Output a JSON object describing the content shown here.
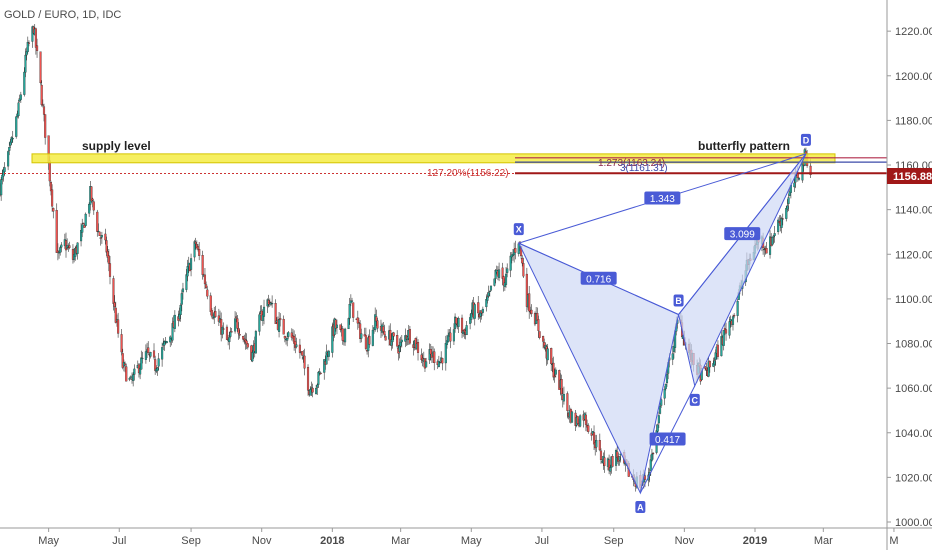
{
  "chart_data": {
    "type": "candlestick",
    "title": "GOLD / EURO, 1D, IDC",
    "ylim": [
      1000,
      1225
    ],
    "y_ticks": [
      1000,
      1020,
      1040,
      1060,
      1080,
      1100,
      1120,
      1140,
      1160,
      1180,
      1200,
      1220
    ],
    "y_tick_labels": [
      "1000.00",
      "1020.00",
      "1040.00",
      "1060.00",
      "1080.00",
      "1100.00",
      "1120.00",
      "1140.00",
      "1160.00",
      "1180.00",
      "1200.00",
      "1220.00"
    ],
    "x_labels": [
      "May",
      "Jul",
      "Sep",
      "Nov",
      "2018",
      "Mar",
      "May",
      "Jul",
      "Sep",
      "Nov",
      "2019",
      "Mar",
      "M"
    ],
    "x_start": "2017-03-20",
    "x_end": "2019-04-25",
    "x_label_dates": [
      "2017-05-01",
      "2017-07-01",
      "2017-09-01",
      "2017-11-01",
      "2018-01-01",
      "2018-03-01",
      "2018-05-01",
      "2018-07-01",
      "2018-09-01",
      "2018-11-01",
      "2019-01-01",
      "2019-03-01",
      "2019-05-01"
    ],
    "last_price": 1156.88,
    "last_price_label": "1156.88",
    "price_path": [
      [
        "2017-03-20",
        1150
      ],
      [
        "2017-03-28",
        1165
      ],
      [
        "2017-04-05",
        1185
      ],
      [
        "2017-04-12",
        1210
      ],
      [
        "2017-04-18",
        1222
      ],
      [
        "2017-04-24",
        1195
      ],
      [
        "2017-04-28",
        1175
      ],
      [
        "2017-05-03",
        1150
      ],
      [
        "2017-05-09",
        1118
      ],
      [
        "2017-05-15",
        1125
      ],
      [
        "2017-05-22",
        1118
      ],
      [
        "2017-05-30",
        1130
      ],
      [
        "2017-06-06",
        1147
      ],
      [
        "2017-06-13",
        1130
      ],
      [
        "2017-06-20",
        1122
      ],
      [
        "2017-06-27",
        1095
      ],
      [
        "2017-07-04",
        1070
      ],
      [
        "2017-07-11",
        1062
      ],
      [
        "2017-07-18",
        1070
      ],
      [
        "2017-07-25",
        1075
      ],
      [
        "2017-08-01",
        1070
      ],
      [
        "2017-08-08",
        1078
      ],
      [
        "2017-08-15",
        1085
      ],
      [
        "2017-08-22",
        1095
      ],
      [
        "2017-08-29",
        1112
      ],
      [
        "2017-09-05",
        1125
      ],
      [
        "2017-09-12",
        1110
      ],
      [
        "2017-09-19",
        1095
      ],
      [
        "2017-09-26",
        1088
      ],
      [
        "2017-10-03",
        1080
      ],
      [
        "2017-10-10",
        1090
      ],
      [
        "2017-10-17",
        1082
      ],
      [
        "2017-10-24",
        1075
      ],
      [
        "2017-10-31",
        1092
      ],
      [
        "2017-11-07",
        1100
      ],
      [
        "2017-11-14",
        1090
      ],
      [
        "2017-11-21",
        1085
      ],
      [
        "2017-11-28",
        1082
      ],
      [
        "2017-12-05",
        1075
      ],
      [
        "2017-12-12",
        1060
      ],
      [
        "2017-12-19",
        1063
      ],
      [
        "2017-12-27",
        1075
      ],
      [
        "2018-01-03",
        1088
      ],
      [
        "2018-01-10",
        1082
      ],
      [
        "2018-01-17",
        1098
      ],
      [
        "2018-01-24",
        1086
      ],
      [
        "2018-01-31",
        1080
      ],
      [
        "2018-02-07",
        1090
      ],
      [
        "2018-02-14",
        1085
      ],
      [
        "2018-02-21",
        1082
      ],
      [
        "2018-02-28",
        1078
      ],
      [
        "2018-03-07",
        1085
      ],
      [
        "2018-03-14",
        1080
      ],
      [
        "2018-03-21",
        1072
      ],
      [
        "2018-03-28",
        1075
      ],
      [
        "2018-04-04",
        1072
      ],
      [
        "2018-04-11",
        1080
      ],
      [
        "2018-04-18",
        1090
      ],
      [
        "2018-04-25",
        1085
      ],
      [
        "2018-05-02",
        1095
      ],
      [
        "2018-05-09",
        1092
      ],
      [
        "2018-05-16",
        1100
      ],
      [
        "2018-05-23",
        1112
      ],
      [
        "2018-05-30",
        1108
      ],
      [
        "2018-06-06",
        1120
      ],
      [
        "2018-06-11",
        1127
      ],
      [
        "2018-06-18",
        1100
      ],
      [
        "2018-06-25",
        1092
      ],
      [
        "2018-07-02",
        1080
      ],
      [
        "2018-07-09",
        1070
      ],
      [
        "2018-07-16",
        1062
      ],
      [
        "2018-07-23",
        1050
      ],
      [
        "2018-07-30",
        1045
      ],
      [
        "2018-08-06",
        1048
      ],
      [
        "2018-08-13",
        1040
      ],
      [
        "2018-08-20",
        1030
      ],
      [
        "2018-08-27",
        1025
      ],
      [
        "2018-09-03",
        1030
      ],
      [
        "2018-09-10",
        1025
      ],
      [
        "2018-09-17",
        1020
      ],
      [
        "2018-09-24",
        1017
      ],
      [
        "2018-10-01",
        1022
      ],
      [
        "2018-10-08",
        1040
      ],
      [
        "2018-10-15",
        1062
      ],
      [
        "2018-10-22",
        1078
      ],
      [
        "2018-10-27",
        1092
      ],
      [
        "2018-11-03",
        1078
      ],
      [
        "2018-11-10",
        1070
      ],
      [
        "2018-11-17",
        1065
      ],
      [
        "2018-11-24",
        1070
      ],
      [
        "2018-12-01",
        1078
      ],
      [
        "2018-12-08",
        1088
      ],
      [
        "2018-12-15",
        1095
      ],
      [
        "2018-12-22",
        1110
      ],
      [
        "2018-12-29",
        1120
      ],
      [
        "2019-01-05",
        1128
      ],
      [
        "2019-01-12",
        1122
      ],
      [
        "2019-01-19",
        1132
      ],
      [
        "2019-01-26",
        1138
      ],
      [
        "2019-02-02",
        1150
      ],
      [
        "2019-02-09",
        1158
      ],
      [
        "2019-02-14",
        1165
      ],
      [
        "2019-02-18",
        1157
      ]
    ],
    "horizontal_levels": [
      {
        "name": "supply-band",
        "y_top": 1165,
        "y_bottom": 1161,
        "color": "#f5ec44",
        "border": "#d4c400"
      },
      {
        "name": "level-1163",
        "y": 1163.24,
        "color": "#b02a4a"
      },
      {
        "name": "level-1161",
        "y": 1161.3,
        "color": "#3b4aa8"
      },
      {
        "name": "level-1156-dotted",
        "y": 1156.22,
        "color": "#cc3333"
      },
      {
        "name": "level-1156-solid",
        "y": 1156.3,
        "color": "#a01818"
      }
    ],
    "pattern": {
      "name": "butterfly",
      "points": [
        {
          "label": "X",
          "date": "2018-06-11",
          "value": 1125
        },
        {
          "label": "A",
          "date": "2018-09-24",
          "value": 1013
        },
        {
          "label": "B",
          "date": "2018-10-27",
          "value": 1093
        },
        {
          "label": "C",
          "date": "2018-11-10",
          "value": 1061
        },
        {
          "label": "D",
          "date": "2019-02-14",
          "value": 1165
        }
      ],
      "ratios": [
        {
          "label": "0.716",
          "between": [
            "X",
            "B"
          ]
        },
        {
          "label": "0.417",
          "between": [
            "A",
            "C"
          ]
        },
        {
          "label": "3.099",
          "between": [
            "B",
            "D"
          ]
        },
        {
          "label": "1.343",
          "between": [
            "X",
            "D"
          ]
        }
      ],
      "color": "#4a5bd6",
      "fill": "#cfd8f5"
    },
    "annotations": [
      {
        "text": "supply level"
      },
      {
        "text": "butterfly pattern"
      },
      {
        "text": "1.273(1163.24)"
      },
      {
        "text": "3(1161.31)"
      },
      {
        "text": "127.20%(1156.22)"
      }
    ],
    "colors": {
      "up": "#26a69a",
      "down": "#ef5350",
      "axis": "#4a4a4a",
      "price_label_bg": "#a01818"
    }
  }
}
